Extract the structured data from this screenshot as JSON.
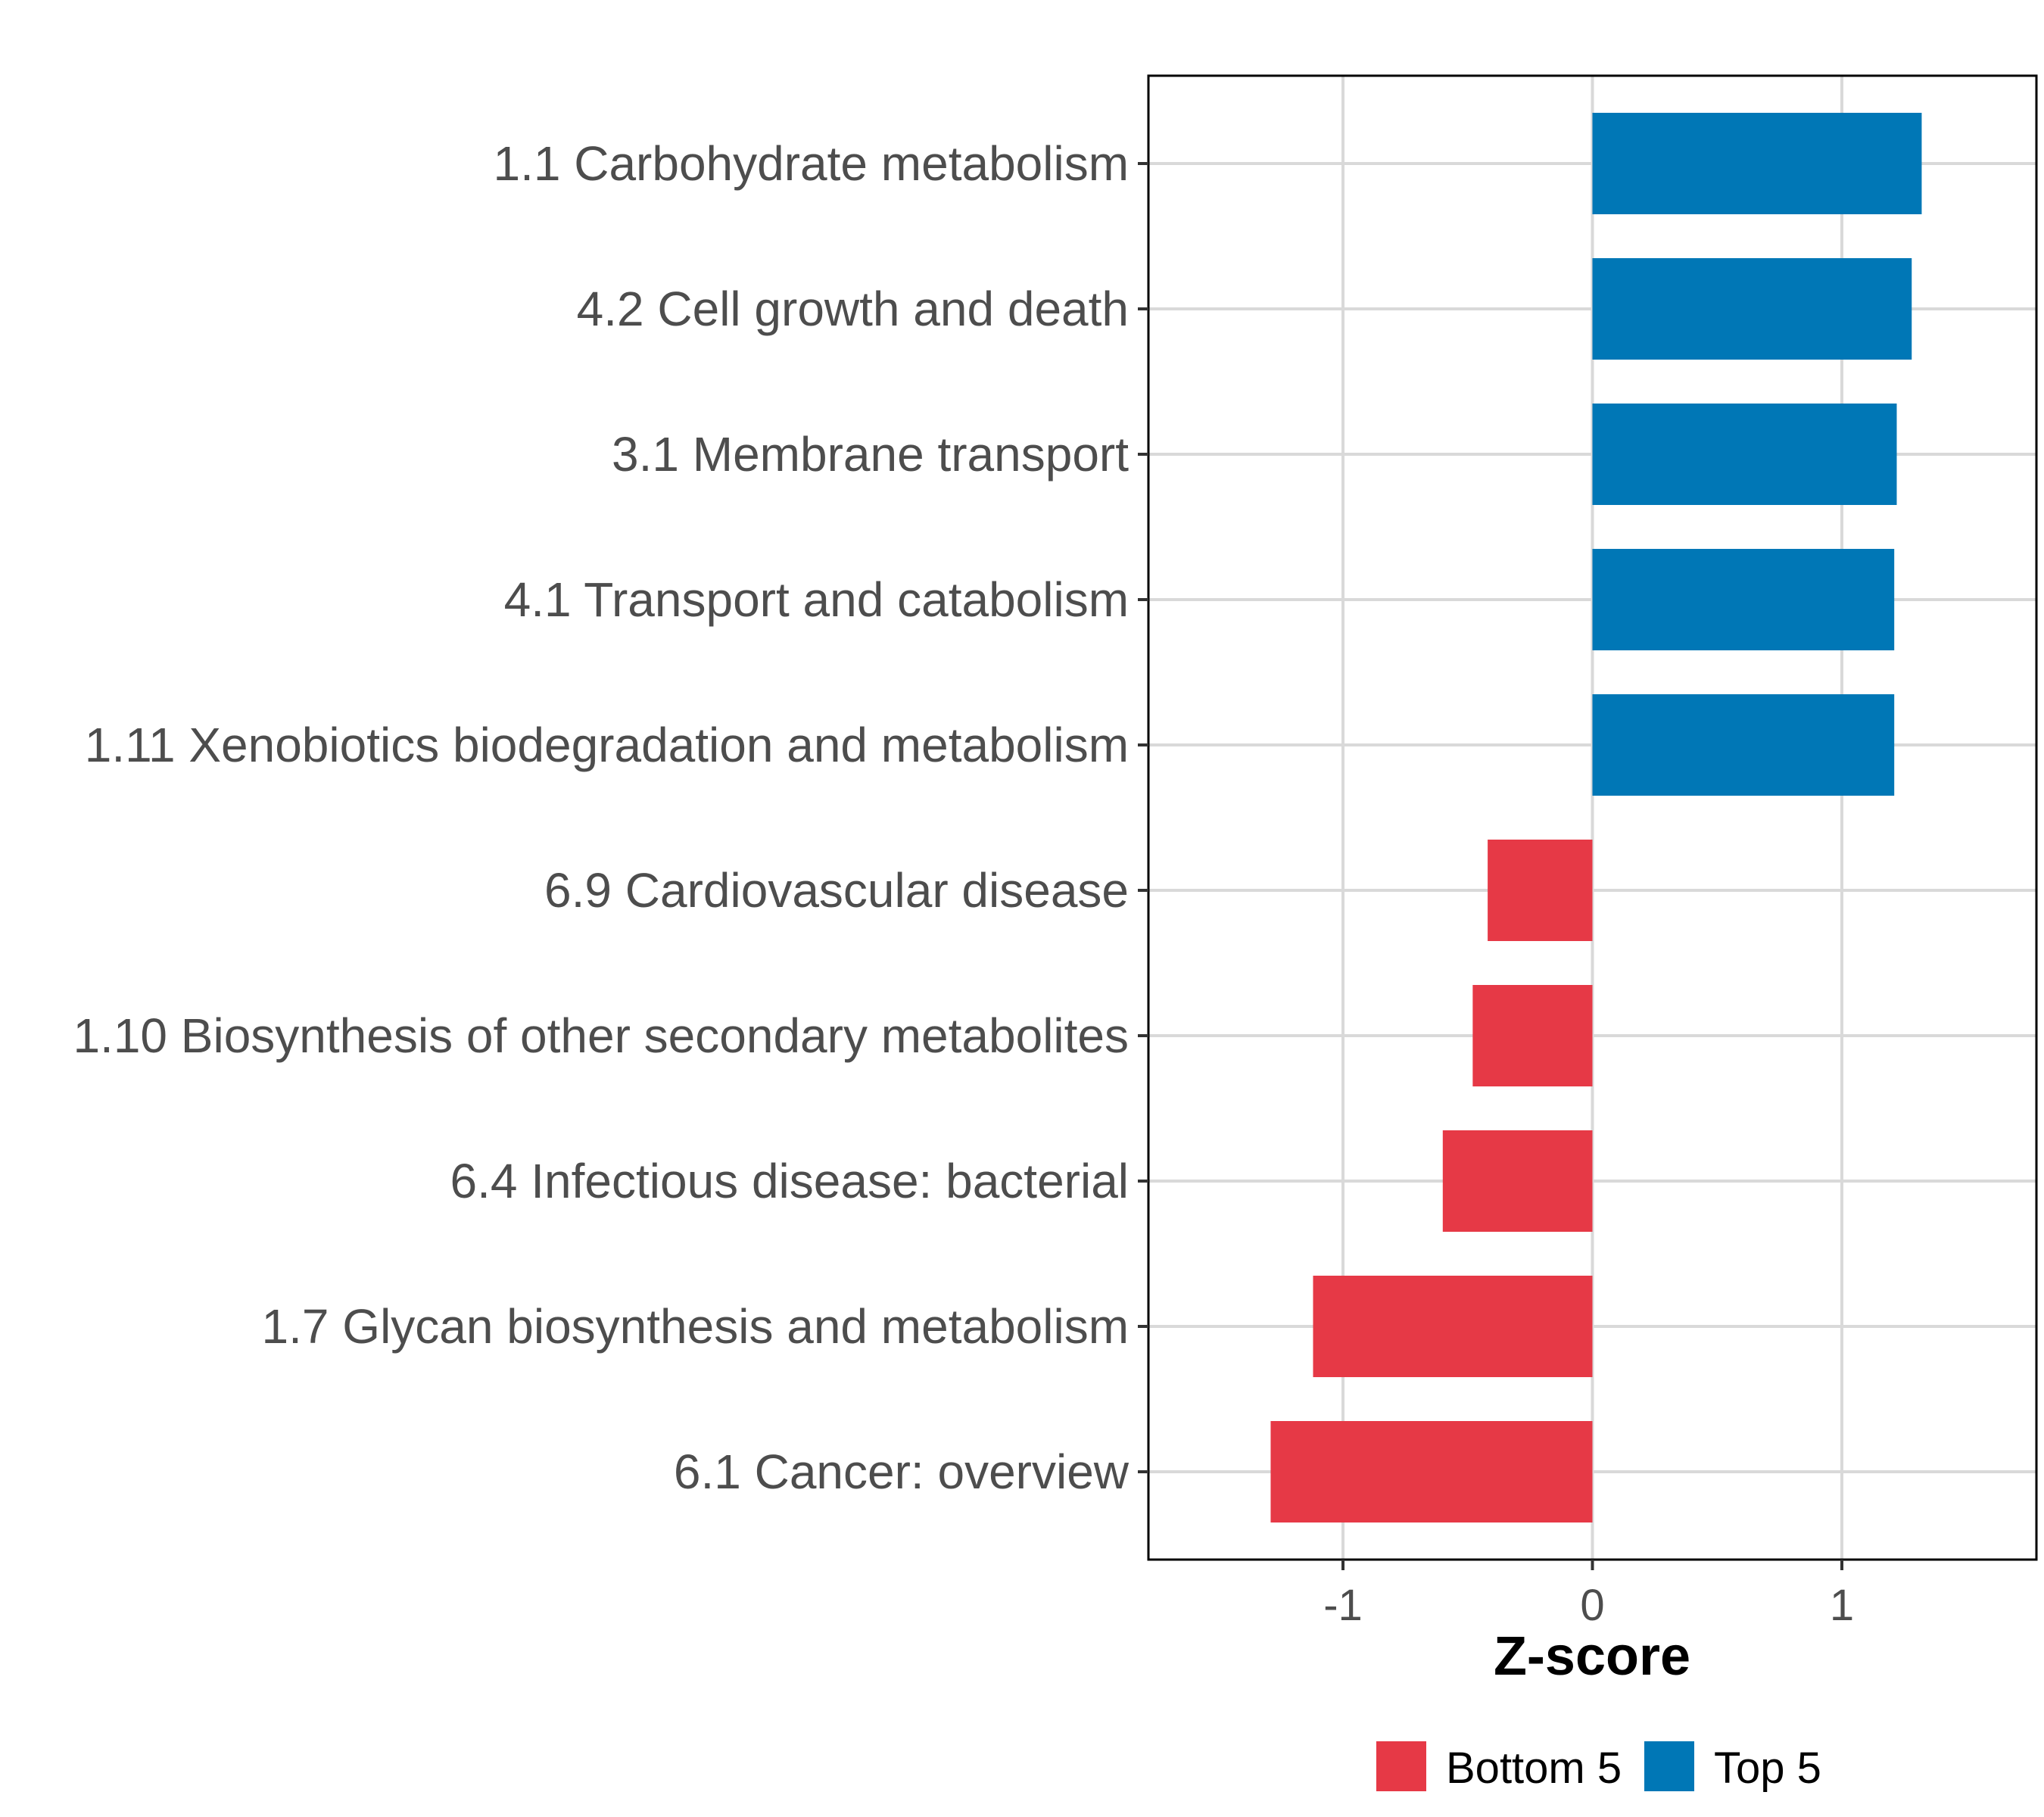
{
  "chart_data": {
    "type": "bar",
    "orientation": "horizontal",
    "categories": [
      "1.1 Carbohydrate metabolism",
      "4.2 Cell growth and death",
      "3.1 Membrane transport",
      "4.1 Transport and catabolism",
      "1.11 Xenobiotics biodegradation and metabolism",
      "6.9 Cardiovascular disease",
      "1.10 Biosynthesis of other secondary metabolites",
      "6.4 Infectious disease: bacterial",
      "1.7 Glycan biosynthesis and metabolism",
      "6.1 Cancer: overview"
    ],
    "values": [
      1.32,
      1.28,
      1.22,
      1.21,
      1.21,
      -0.42,
      -0.48,
      -0.6,
      -1.12,
      -1.29
    ],
    "groups": [
      "Top 5",
      "Top 5",
      "Top 5",
      "Top 5",
      "Top 5",
      "Bottom 5",
      "Bottom 5",
      "Bottom 5",
      "Bottom 5",
      "Bottom 5"
    ],
    "xlabel": "Z-score",
    "ylabel": "",
    "xlim": [
      -1.78,
      1.78
    ],
    "xticks": [
      -1,
      0,
      1
    ],
    "xtick_labels": [
      "-1",
      "0",
      "1"
    ],
    "grid": true,
    "legend": {
      "placement": "bottom",
      "items": [
        {
          "label": "Bottom 5",
          "color": "#e63946"
        },
        {
          "label": "Top 5",
          "color": "#0077b6"
        }
      ]
    },
    "colors": {
      "Top 5": "#0077b6",
      "Bottom 5": "#e63946"
    }
  }
}
